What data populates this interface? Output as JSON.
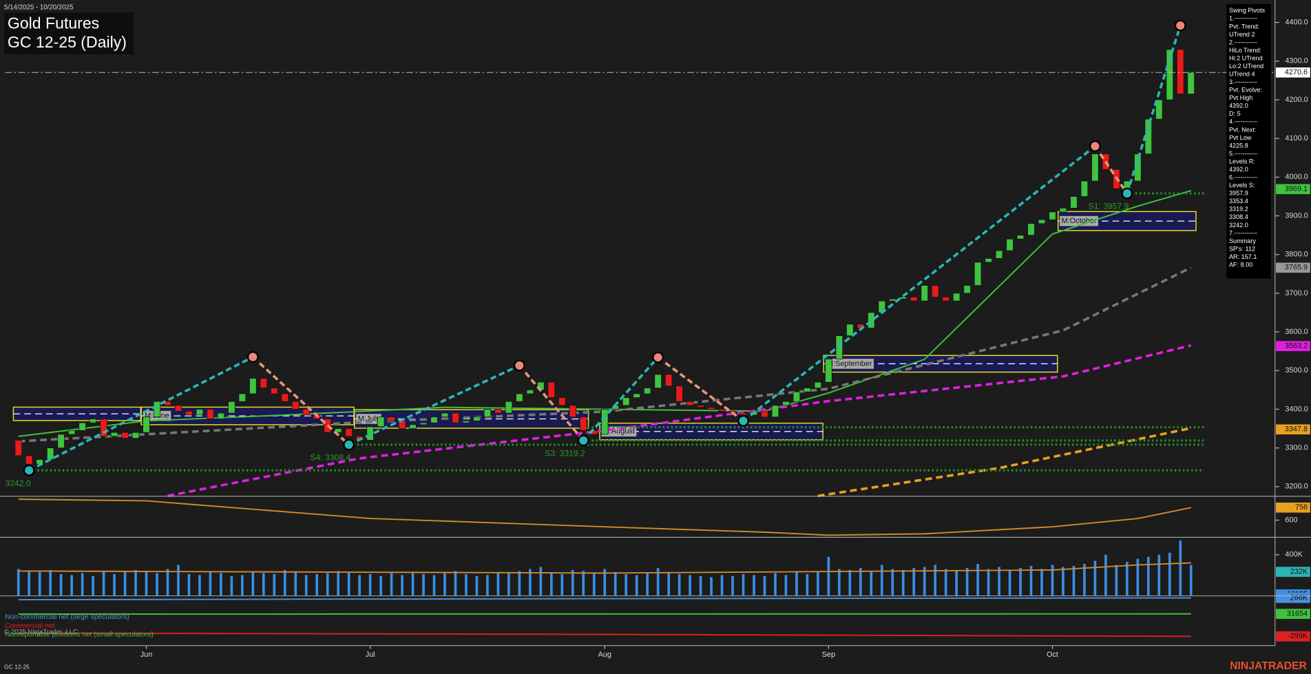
{
  "header": {
    "date_range": "5/14/2025 - 10/20/2025",
    "title": "Gold Futures",
    "subtitle": "GC 12-25 (Daily)"
  },
  "info_panel": [
    "Swing Pivots",
    "1.-----------",
    "Pvt. Trend:",
    "UTrend 2",
    "2.-----------",
    "HiLo Trend:",
    "Hi:2 UTrend",
    "Lo:2 UTrend",
    "UTrend 4",
    "3.-----------",
    "Pvt. Evolve:",
    "Pvt High",
    "4392.0",
    "D: 5",
    "4.-----------",
    "Pvt. Next:",
    "Pvt Low",
    "4225.8",
    "5.-----------",
    "Levels R:",
    "4392.0",
    "6.-----------",
    "Levels S:",
    "3957.9",
    "3353.4",
    "3319.2",
    "3308.4",
    "3242.0",
    "7.-----------",
    "Summary",
    "SP's: 112",
    "AR: 157.1",
    "AF: 8.00"
  ],
  "footer": {
    "symbol": "GC 12-25",
    "brand": "NINJATRADER",
    "copyright": "© 2025 NinjaTrader, LLC"
  },
  "chart_data": [
    {
      "type": "candlestick",
      "categories": [
        null,
        null,
        null,
        null,
        null,
        null,
        null,
        null,
        null,
        null,
        null,
        null,
        "Jun",
        null,
        null,
        null,
        null,
        null,
        null,
        null,
        null,
        null,
        null,
        null,
        null,
        null,
        null,
        null,
        null,
        null,
        null,
        null,
        null,
        "Jul",
        null,
        null,
        null,
        null,
        null,
        null,
        null,
        null,
        null,
        null,
        null,
        null,
        null,
        null,
        null,
        null,
        null,
        null,
        null,
        null,
        null,
        "Aug",
        null,
        null,
        null,
        null,
        null,
        null,
        null,
        null,
        null,
        null,
        null,
        null,
        null,
        null,
        null,
        null,
        null,
        null,
        null,
        null,
        "Sep",
        null,
        null,
        null,
        null,
        null,
        null,
        null,
        null,
        null,
        null,
        null,
        null,
        null,
        null,
        null,
        null,
        null,
        null,
        null,
        null,
        "Oct",
        null,
        null,
        null,
        null,
        null,
        null,
        null,
        null,
        null,
        null,
        null,
        null,
        null
      ],
      "open": [
        3320,
        3280,
        3258,
        3270,
        3300,
        3335,
        3345,
        3365,
        3375,
        3330,
        3340,
        3325,
        3340,
        3380,
        3420,
        3410,
        3395,
        3385,
        3400,
        3375,
        3390,
        3420,
        3440,
        3480,
        3455,
        3440,
        3420,
        3400,
        3385,
        3375,
        3340,
        3350,
        3330,
        3320,
        3355,
        3380,
        3370,
        3350,
        3360,
        3365,
        3380,
        3390,
        3365,
        3370,
        3380,
        3400,
        3390,
        3420,
        3440,
        3450,
        3470,
        3430,
        3410,
        3380,
        3345,
        3335,
        3400,
        3410,
        3430,
        3440,
        3455,
        3490,
        3460,
        3420,
        3410,
        3405,
        3400,
        3395,
        3390,
        3385,
        3395,
        3380,
        3410,
        3420,
        3445,
        3455,
        3470,
        3530,
        3590,
        3620,
        3610,
        3650,
        3680,
        3685,
        3690,
        3680,
        3720,
        3690,
        3680,
        3700,
        3720,
        3780,
        3790,
        3810,
        3840,
        3850,
        3880,
        3890,
        3910,
        3920,
        3950,
        3990,
        4060,
        4020,
        3970,
        3990,
        4060,
        4150,
        4200,
        4330,
        4215
      ],
      "close": [
        3280,
        3258,
        3270,
        3300,
        3335,
        3345,
        3365,
        3375,
        3330,
        3340,
        3325,
        3340,
        3380,
        3420,
        3410,
        3395,
        3385,
        3400,
        3375,
        3390,
        3420,
        3440,
        3480,
        3455,
        3440,
        3420,
        3400,
        3385,
        3375,
        3340,
        3350,
        3330,
        3320,
        3355,
        3380,
        3370,
        3350,
        3360,
        3365,
        3380,
        3390,
        3365,
        3370,
        3380,
        3400,
        3390,
        3420,
        3440,
        3450,
        3470,
        3430,
        3410,
        3380,
        3345,
        3335,
        3400,
        3410,
        3430,
        3440,
        3455,
        3490,
        3460,
        3420,
        3410,
        3405,
        3400,
        3395,
        3390,
        3385,
        3395,
        3380,
        3410,
        3420,
        3445,
        3455,
        3470,
        3530,
        3590,
        3620,
        3610,
        3650,
        3680,
        3685,
        3690,
        3680,
        3720,
        3690,
        3680,
        3700,
        3720,
        3780,
        3790,
        3810,
        3840,
        3850,
        3880,
        3890,
        3910,
        3920,
        3950,
        3990,
        4060,
        4020,
        3970,
        3990,
        4060,
        4150,
        4200,
        4330,
        4215,
        4270.6
      ],
      "up_color": "#3ec43e",
      "down_color": "#e81b1b",
      "ylim": [
        3176,
        4458
      ],
      "yticks": [
        {
          "value": 3200,
          "label": "3200.0"
        },
        {
          "value": 3300,
          "label": "3300.0"
        },
        {
          "value": 3400,
          "label": "3400.0"
        },
        {
          "value": 3500,
          "label": "3500.0"
        },
        {
          "value": 3600,
          "label": "3600.0"
        },
        {
          "value": 3700,
          "label": "3700.0"
        },
        {
          "value": 3800,
          "label": "3800.0"
        },
        {
          "value": 3900,
          "label": "3900.0"
        },
        {
          "value": 4000,
          "label": "4000.0"
        },
        {
          "value": 4100,
          "label": "4100.0"
        },
        {
          "value": 4200,
          "label": "4200.0"
        },
        {
          "value": 4300,
          "label": "4300.0"
        },
        {
          "value": 4400,
          "label": "4400.0"
        }
      ],
      "value_areas": [
        {
          "x": [
            0,
            11
          ],
          "range": [
            3405.4,
            3370.8
          ]
        },
        {
          "label": "M:June",
          "x": [
            12,
            31
          ],
          "range": [
            3405.4,
            3360
          ]
        },
        {
          "label": "M:July",
          "x": [
            32,
            53
          ],
          "range": [
            3399,
            3351
          ]
        },
        {
          "label": "M:August",
          "x": [
            55,
            75
          ],
          "range": [
            3364,
            3321
          ]
        },
        {
          "label": "M:September",
          "x": [
            76,
            97
          ],
          "range": [
            3539,
            3496
          ]
        },
        {
          "label": "M:October",
          "x": [
            98,
            110
          ],
          "range": [
            3911,
            3862
          ]
        }
      ],
      "lines": [
        {
          "color": "#3ec43e",
          "dash": "solid",
          "x": [
            0,
            12,
            25,
            40,
            55,
            70,
            76,
            85,
            97,
            105,
            110
          ],
          "values": [
            3330,
            3370,
            3385,
            3405,
            3400,
            3395,
            3442,
            3529,
            3853,
            3925,
            3965
          ]
        },
        {
          "color": "#777777",
          "dash": "dashed",
          "x": [
            0,
            32,
            55,
            76,
            98,
            110
          ],
          "values": [
            3317,
            3366,
            3394,
            3453,
            3604,
            3766
          ]
        },
        {
          "color": "#e020e0",
          "dash": "dashed",
          "x": [
            14,
            32,
            55,
            76,
            98,
            110
          ],
          "values": [
            3176,
            3273,
            3345,
            3421,
            3485,
            3565
          ]
        },
        {
          "color": "#e8a020",
          "dash": "dashed",
          "x": [
            75,
            92,
            110
          ],
          "values": [
            3176,
            3248,
            3351
          ]
        }
      ],
      "levels": [
        {
          "value": 3957.9,
          "from": 104
        },
        {
          "value": 3353.4,
          "from": 53
        },
        {
          "value": 3319.2,
          "from": 53
        },
        {
          "value": 3308.4,
          "from": 31
        },
        {
          "value": 3242.0,
          "from": 1
        }
      ],
      "level_color": "#1f9a1f",
      "pivots": [
        {
          "x": 1,
          "value": 3242.0,
          "label": "3242.0"
        },
        {
          "x": 22,
          "value": 3535
        },
        {
          "x": 31,
          "value": 3308.4,
          "label": "S4: 3308.4"
        },
        {
          "x": 47,
          "value": 3513
        },
        {
          "x": 53,
          "value": 3319.2,
          "label": "S3: 3319.2"
        },
        {
          "x": 60,
          "value": 3534
        },
        {
          "x": 68,
          "value": 3370
        },
        {
          "x": 101,
          "value": 4080
        },
        {
          "x": 104,
          "value": 3957.9,
          "label": "S1: 3957.9"
        },
        {
          "x": 109,
          "value": 4392.0
        }
      ],
      "badges": [
        {
          "value": 4270.6,
          "color": "#ffffff"
        },
        {
          "value": 3969.1,
          "color": "#3ec43e"
        },
        {
          "value": 3765.9,
          "color": "#999999"
        },
        {
          "value": 3563.2,
          "color": "#e020e0"
        },
        {
          "value": 3347.8,
          "color": "#e8a020"
        }
      ],
      "current_price_line": true
    },
    {
      "type": "line",
      "series": [
        {
          "color": "#d08a2a",
          "x": [
            0,
            12,
            33,
            55,
            70,
            76,
            85,
            97,
            105,
            110
          ],
          "values": [
            860,
            840,
            621,
            517,
            450,
            413,
            430,
            517,
            620,
            756
          ]
        }
      ],
      "ylim": [
        392,
        891
      ],
      "yticks": [
        600
      ],
      "badges": [
        {
          "value": 756,
          "color": "#e8a020"
        }
      ]
    },
    {
      "type": "bar",
      "values": [
        260000,
        240000,
        230000,
        250000,
        210000,
        200000,
        220000,
        190000,
        230000,
        210000,
        240000,
        250000,
        230000,
        220000,
        260000,
        300000,
        210000,
        200000,
        230000,
        220000,
        190000,
        200000,
        240000,
        220000,
        210000,
        250000,
        230000,
        200000,
        210000,
        220000,
        240000,
        230000,
        200000,
        210000,
        190000,
        220000,
        200000,
        230000,
        210000,
        200000,
        220000,
        240000,
        210000,
        190000,
        200000,
        230000,
        220000,
        240000,
        260000,
        280000,
        230000,
        210000,
        250000,
        240000,
        220000,
        260000,
        230000,
        210000,
        200000,
        220000,
        270000,
        230000,
        210000,
        200000,
        190000,
        180000,
        200000,
        190000,
        210000,
        200000,
        190000,
        220000,
        200000,
        230000,
        210000,
        240000,
        380000,
        260000,
        250000,
        270000,
        240000,
        300000,
        260000,
        250000,
        270000,
        280000,
        300000,
        260000,
        250000,
        270000,
        310000,
        260000,
        280000,
        250000,
        270000,
        290000,
        260000,
        300000,
        280000,
        290000,
        310000,
        340000,
        400000,
        300000,
        330000,
        360000,
        380000,
        400000,
        420000,
        540000,
        300000
      ],
      "color": "#3a8ee6",
      "series": [
        {
          "color": "#d08a2a",
          "x": [
            0,
            55,
            97,
            105,
            110
          ],
          "values": [
            240000,
            220000,
            250000,
            300000,
            320000
          ]
        }
      ],
      "ylim": [
        0,
        568000
      ],
      "yticks": [
        {
          "value": 400000,
          "label": "400K"
        }
      ],
      "badges": [
        {
          "value": 232000,
          "label": "232K",
          "color": "#2bb5b5"
        },
        {
          "value": 10195,
          "color": "#3a8ee6"
        }
      ]
    },
    {
      "type": "line",
      "series": [
        {
          "name": "Non-commercial net (large speculators)",
          "color": "#4a90e2",
          "x": [
            0,
            55,
            110
          ],
          "values": [
            240000,
            255000,
            266000
          ]
        },
        {
          "name": "Commercial net",
          "color": "#e02020",
          "x": [
            0,
            55,
            110
          ],
          "values": [
            -250000,
            -270000,
            -299000
          ]
        },
        {
          "name": "Nonreportable positions net (small speculators)",
          "color": "#3ec43e",
          "x": [
            0,
            110
          ],
          "values": [
            28000,
            31654
          ]
        }
      ],
      "ylim": [
        -434000,
        290600
      ],
      "legend": "top-left",
      "badges": [
        {
          "value": 266000,
          "label": "266K",
          "color": "#4a90e2"
        },
        {
          "value": 31654,
          "color": "#3ec43e"
        },
        {
          "value": -299000,
          "label": "-299K",
          "color": "#e02020"
        }
      ]
    }
  ]
}
